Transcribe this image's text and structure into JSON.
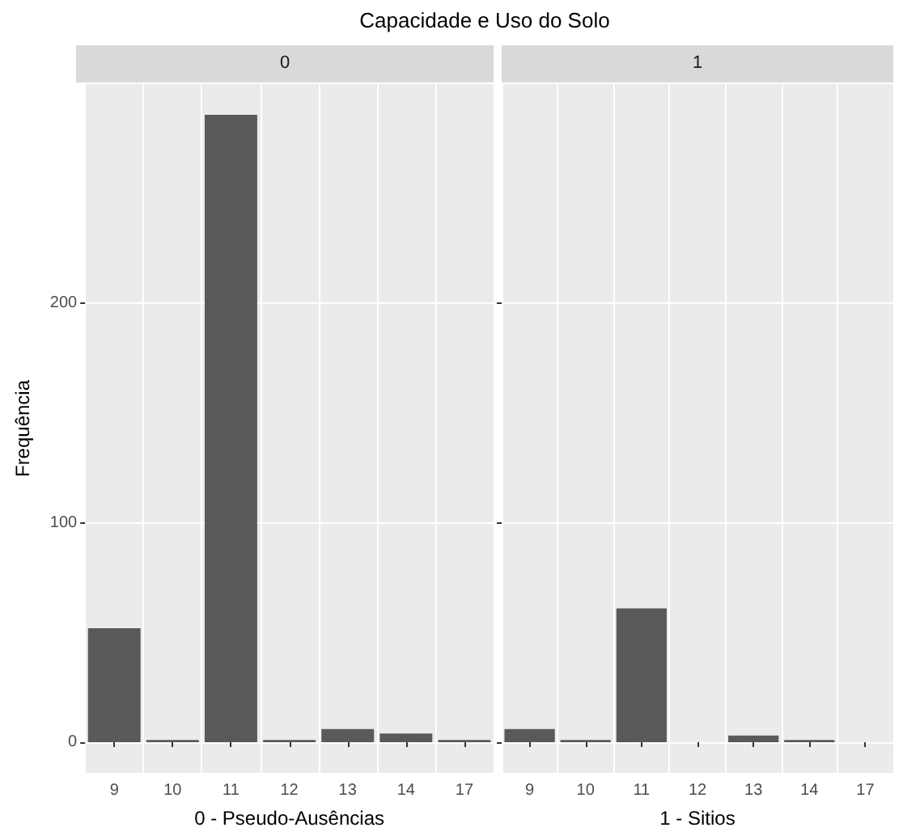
{
  "chart_data": [
    {
      "type": "bar",
      "title": "Capacidade e Uso do Solo",
      "subtitle": "0",
      "xlabel": "0 - Pseudo-Ausências",
      "ylabel": "Frequência",
      "categories": [
        "9",
        "10",
        "11",
        "12",
        "13",
        "14",
        "17"
      ],
      "values": [
        52,
        1,
        286,
        1,
        6,
        4,
        1
      ],
      "color": "#595959",
      "ylim": [
        -14,
        300
      ],
      "yticks": [
        0,
        100,
        200
      ],
      "grid": true
    },
    {
      "type": "bar",
      "subtitle": "1",
      "xlabel": "1 - Sitios",
      "categories": [
        "9",
        "10",
        "11",
        "12",
        "13",
        "14",
        "17"
      ],
      "values": [
        6,
        1,
        61,
        null,
        3,
        1,
        null
      ],
      "color": "#595959",
      "ylim": [
        -14,
        300
      ],
      "yticks": [
        0,
        100,
        200
      ],
      "grid": true,
      "tick_labels": "x"
    }
  ]
}
